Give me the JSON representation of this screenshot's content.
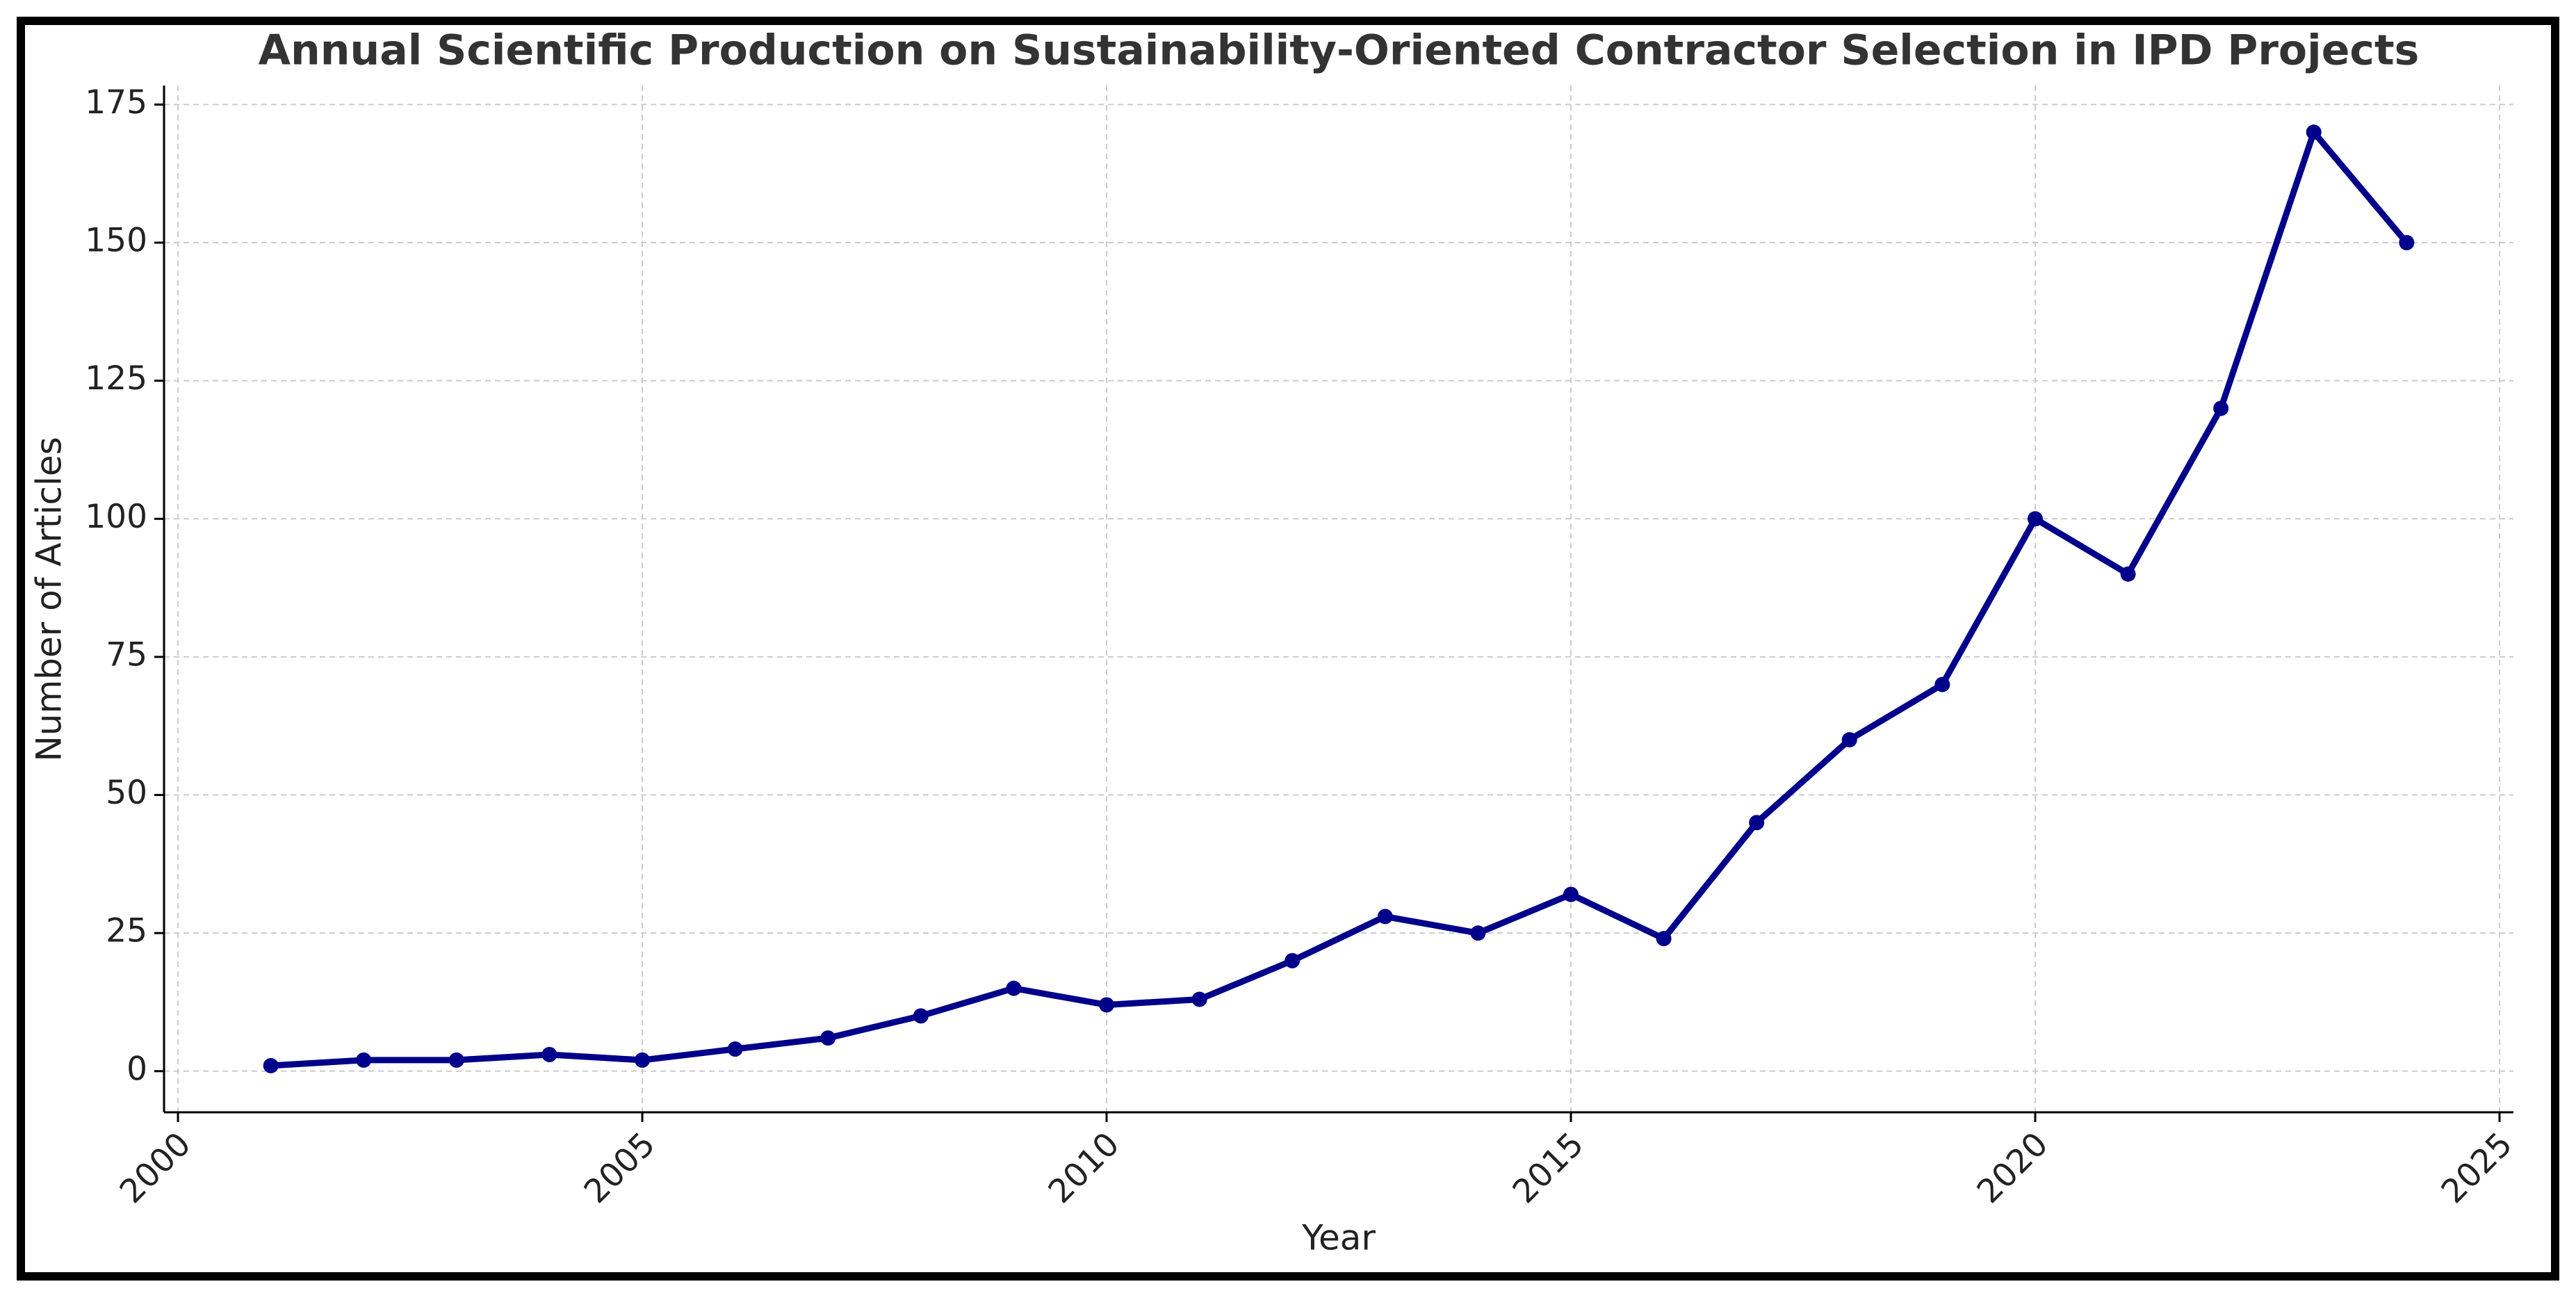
{
  "chart_data": {
    "type": "line",
    "title": "Annual Scientific Production on Sustainability-Oriented Contractor Selection in IPD Projects",
    "xlabel": "Year",
    "ylabel": "Number of Articles",
    "x": [
      2001,
      2002,
      2003,
      2004,
      2005,
      2006,
      2007,
      2008,
      2009,
      2010,
      2011,
      2012,
      2013,
      2014,
      2015,
      2016,
      2017,
      2018,
      2019,
      2020,
      2021,
      2022,
      2023,
      2024
    ],
    "series": [
      {
        "color": "#00008b",
        "values": [
          1,
          2,
          2,
          3,
          2,
          4,
          6,
          10,
          15,
          12,
          13,
          20,
          28,
          25,
          32,
          24,
          45,
          60,
          70,
          100,
          90,
          120,
          170,
          150
        ]
      }
    ],
    "xlim": [
      1999.85,
      2025.15
    ],
    "xticks": [
      2000,
      2005,
      2010,
      2015,
      2020,
      2025
    ],
    "ylim": [
      -7.45,
      178.45
    ],
    "yticks": [
      0,
      25,
      50,
      75,
      100,
      125,
      150,
      175
    ],
    "grid": true
  }
}
